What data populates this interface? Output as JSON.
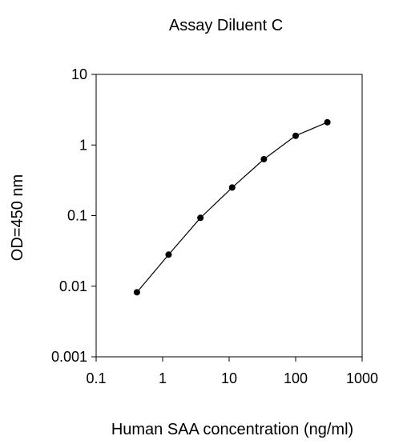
{
  "chart_data": {
    "type": "scatter",
    "title": "Assay Diluent C",
    "xlabel": "Human SAA concentration (ng/ml)",
    "ylabel": "OD=450 nm",
    "x_scale": "log",
    "y_scale": "log",
    "xlim": [
      0.1,
      1000
    ],
    "ylim": [
      0.001,
      10
    ],
    "x_ticks": [
      0.1,
      1,
      10,
      100,
      1000
    ],
    "x_tick_labels": [
      "0.1",
      "1",
      "10",
      "100",
      "1000"
    ],
    "y_ticks": [
      0.001,
      0.01,
      0.1,
      1,
      10
    ],
    "y_tick_labels": [
      "0.001",
      "0.01",
      "0.1",
      "1",
      "10"
    ],
    "grid": false,
    "legend": "none",
    "series": [
      {
        "x": [
          0.41,
          1.23,
          3.7,
          11.1,
          33.3,
          100,
          300
        ],
        "y": [
          0.0082,
          0.028,
          0.093,
          0.25,
          0.63,
          1.35,
          2.1
        ],
        "marker": "circle",
        "line": "solid",
        "color": "#000000"
      }
    ]
  }
}
